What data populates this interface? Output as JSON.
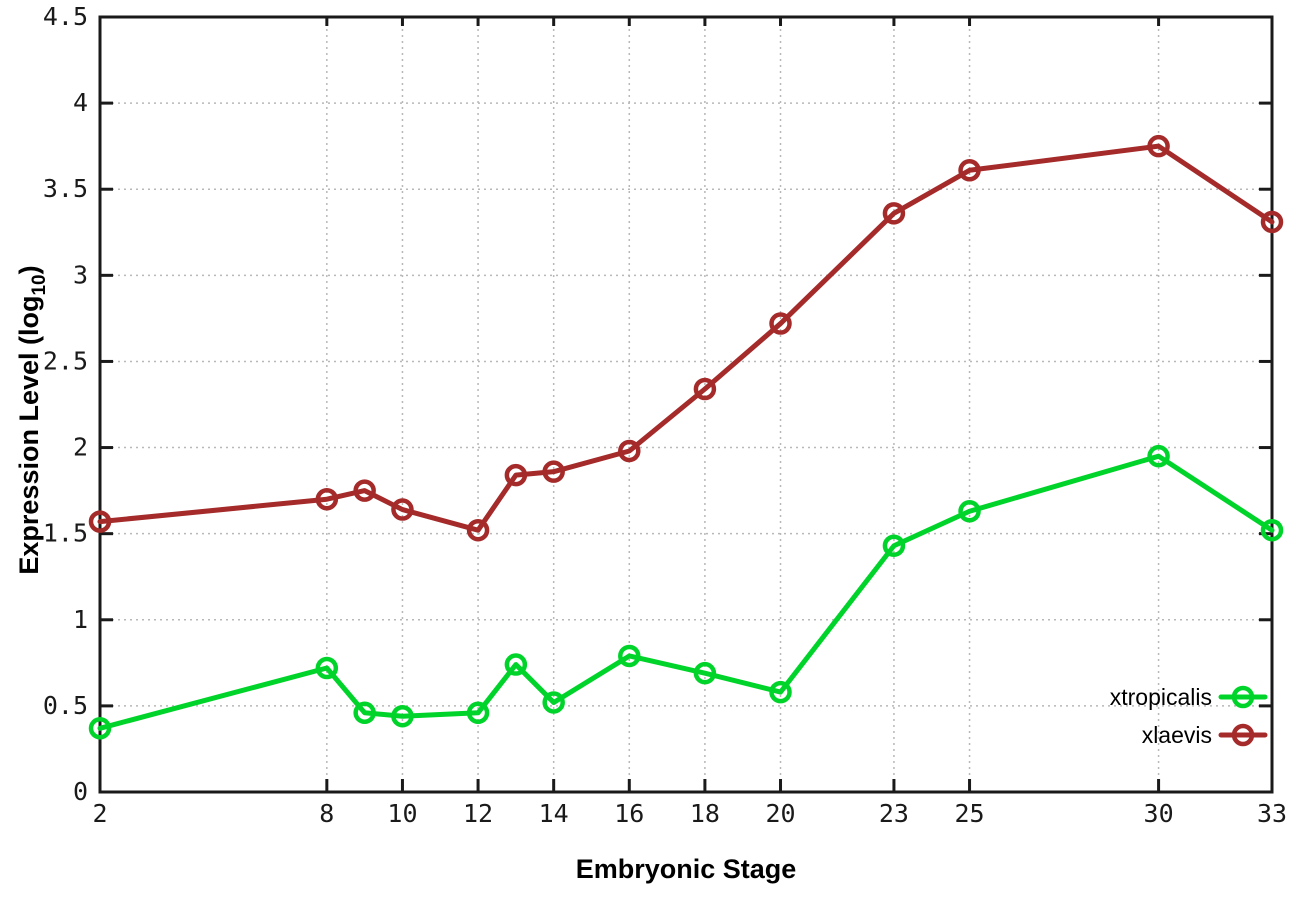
{
  "chart_data": {
    "type": "line",
    "title": "",
    "xlabel": "Embryonic Stage",
    "ylabel": "Expression Level (log10)",
    "ylabel_parts": {
      "main": "Expression Level (log",
      "sub": "10",
      "end": ")"
    },
    "xlim": [
      2,
      33
    ],
    "ylim": [
      0,
      4.5
    ],
    "xticks": [
      2,
      8,
      10,
      12,
      14,
      16,
      18,
      20,
      23,
      25,
      30,
      33
    ],
    "yticks": [
      0,
      0.5,
      1,
      1.5,
      2,
      2.5,
      3,
      3.5,
      4,
      4.5
    ],
    "grid": true,
    "legend_position": "bottom-right",
    "x": [
      2,
      8,
      9,
      10,
      12,
      13,
      14,
      16,
      18,
      20,
      23,
      25,
      30,
      33
    ],
    "series": [
      {
        "name": "xtropicalis",
        "color": "#00d42a",
        "marker": "open-circle",
        "values": [
          0.37,
          0.72,
          0.46,
          0.44,
          0.46,
          0.74,
          0.52,
          0.79,
          0.69,
          0.58,
          1.43,
          1.63,
          1.95,
          1.52
        ]
      },
      {
        "name": "xlaevis",
        "color": "#a52a2a",
        "marker": "open-circle",
        "values": [
          1.57,
          1.7,
          1.75,
          1.64,
          1.52,
          1.84,
          1.86,
          1.98,
          2.34,
          2.72,
          3.36,
          3.61,
          3.75,
          3.31
        ]
      }
    ],
    "style": {
      "border_color": "#1a1a1a",
      "grid_color": "#b8b8b8",
      "background": "#ffffff",
      "line_width": 5,
      "marker_radius": 9,
      "marker_stroke": 4.5
    }
  }
}
